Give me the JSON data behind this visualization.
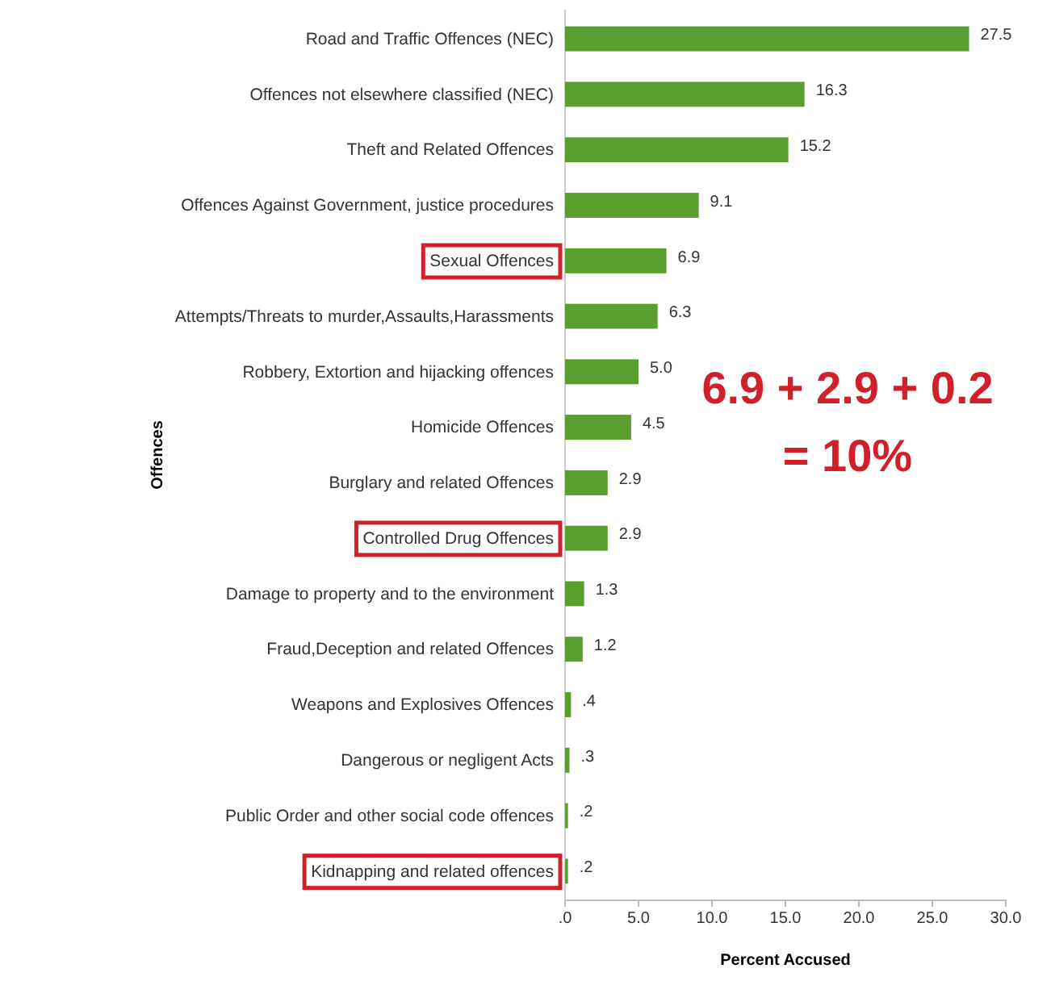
{
  "chart_data": {
    "type": "bar",
    "orientation": "horizontal",
    "xlabel": "Percent Accused",
    "ylabel": "Offences",
    "categories": [
      "Road and Traffic Offences (NEC)",
      "Offences not elsewhere classified (NEC)",
      "Theft and Related Offences",
      "Offences Against Government, justice procedures",
      "Sexual Offences",
      "Attempts/Threats  to  murder,Assaults,Harassments",
      "Robbery, Extortion and hijacking offences",
      "Homicide Offences",
      "Burglary and related Offences",
      "Controlled Drug Offences",
      "Damage to property and to the environment",
      "Fraud,Deception and related Offences",
      "Weapons and Explosives Offences",
      "Dangerous or negligent Acts",
      "Public Order and other social code offences",
      "Kidnapping and related offences"
    ],
    "values": [
      27.5,
      16.3,
      15.2,
      9.1,
      6.9,
      6.3,
      5.0,
      4.5,
      2.9,
      2.9,
      1.3,
      1.2,
      0.4,
      0.3,
      0.2,
      0.2
    ],
    "value_labels": [
      "27.5",
      "16.3",
      "15.2",
      "9.1",
      "6.9",
      "6.3",
      "5.0",
      "4.5",
      "2.9",
      "2.9",
      "1.3",
      "1.2",
      ".4",
      ".3",
      ".2",
      ".2"
    ],
    "color": "#5a9e2f",
    "xlim": [
      0,
      30
    ],
    "xticks": [
      {
        "value": 0,
        "label": ".0"
      },
      {
        "value": 5,
        "label": "5.0"
      },
      {
        "value": 10,
        "label": "10.0"
      },
      {
        "value": 15,
        "label": "15.0"
      },
      {
        "value": 20,
        "label": "20.0"
      },
      {
        "value": 25,
        "label": "25.0"
      },
      {
        "value": 30,
        "label": "30.0"
      }
    ],
    "grid": false,
    "annotations": [
      "6.9 + 2.9 + 0.2",
      "= 10%"
    ]
  }
}
